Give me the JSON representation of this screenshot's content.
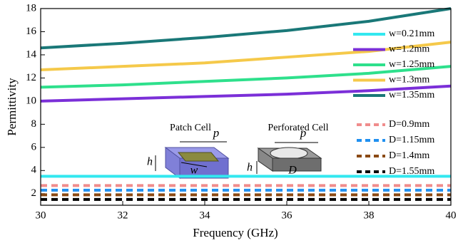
{
  "chart_data": {
    "type": "line",
    "x_label": "Frequency (GHz)",
    "y_label": "Permittivity",
    "x": [
      30,
      32,
      34,
      36,
      38,
      40
    ],
    "series": [
      {
        "name": "w=0.21mm",
        "color": "#33e8f0",
        "style": "solid",
        "values": [
          3.5,
          3.5,
          3.5,
          3.5,
          3.5,
          3.5
        ]
      },
      {
        "name": "w=1.2mm",
        "color": "#7b2fd8",
        "style": "solid",
        "values": [
          10.0,
          10.2,
          10.4,
          10.6,
          10.9,
          11.3
        ]
      },
      {
        "name": "w=1.25mm",
        "color": "#2ee08c",
        "style": "solid",
        "values": [
          11.2,
          11.4,
          11.7,
          12.0,
          12.4,
          13.0
        ]
      },
      {
        "name": "w=1.3mm",
        "color": "#f5c94a",
        "style": "solid",
        "values": [
          12.7,
          13.0,
          13.3,
          13.8,
          14.3,
          15.1
        ]
      },
      {
        "name": "w=1.35mm",
        "color": "#1a7878",
        "style": "solid",
        "values": [
          14.6,
          15.0,
          15.5,
          16.1,
          16.9,
          18.0
        ]
      },
      {
        "name": "D=0.9mm",
        "color": "#f08c8c",
        "style": "dashed",
        "values": [
          2.7,
          2.7,
          2.7,
          2.7,
          2.7,
          2.7
        ]
      },
      {
        "name": "D=1.15mm",
        "color": "#2090f0",
        "style": "dashed",
        "values": [
          2.3,
          2.3,
          2.3,
          2.3,
          2.3,
          2.3
        ]
      },
      {
        "name": "D=1.4mm",
        "color": "#8b4a14",
        "style": "dashed",
        "values": [
          1.9,
          1.9,
          1.9,
          1.9,
          1.9,
          1.9
        ]
      },
      {
        "name": "D=1.55mm",
        "color": "#000000",
        "style": "dashed",
        "values": [
          1.5,
          1.5,
          1.5,
          1.5,
          1.5,
          1.5
        ]
      }
    ],
    "xlim": [
      30,
      40
    ],
    "xticks": [
      30,
      32,
      34,
      36,
      38,
      40
    ],
    "ylim": [
      1,
      18
    ],
    "yticks": [
      2,
      4,
      6,
      8,
      10,
      12,
      14,
      16,
      18
    ],
    "annotations": [
      "Patch Cell",
      "p",
      "h",
      "w",
      "Perforated Cell",
      "p",
      "D",
      "h"
    ]
  }
}
